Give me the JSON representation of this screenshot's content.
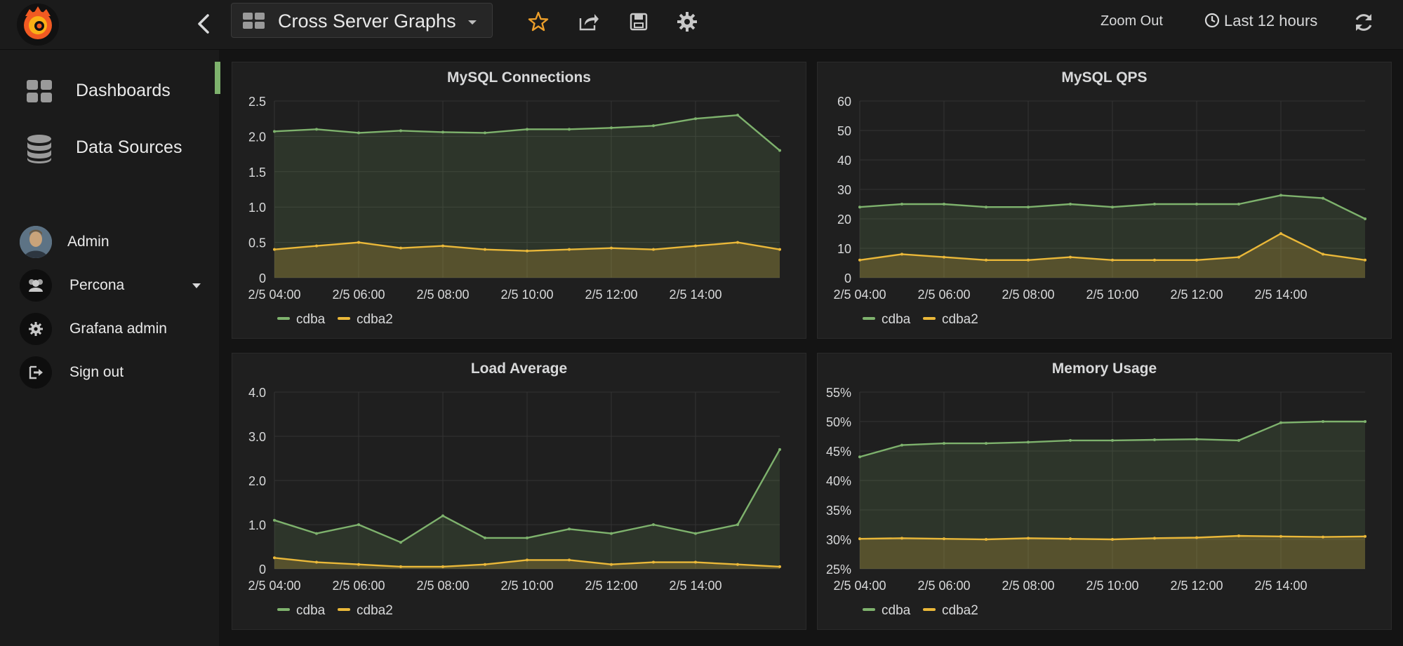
{
  "topbar": {
    "dashboard_title": "Cross Server Graphs",
    "zoom_out": "Zoom Out",
    "time_range": "Last 12 hours"
  },
  "sidebar": {
    "items": [
      {
        "label": "Dashboards",
        "icon": "dashboards-grid-icon"
      },
      {
        "label": "Data Sources",
        "icon": "database-icon"
      }
    ],
    "user": {
      "name": "Admin"
    },
    "org": {
      "name": "Percona"
    },
    "links": [
      {
        "label": "Grafana admin",
        "icon": "gear-icon"
      },
      {
        "label": "Sign out",
        "icon": "sign-out-icon"
      }
    ],
    "accent_color": "#7eb26d"
  },
  "colors": {
    "series_cdba": "#7eb26d",
    "series_cdba2": "#eab839",
    "background": "#141414",
    "panel": "#1f1f1f"
  },
  "chart_data": [
    {
      "type": "area",
      "title": "MySQL Connections",
      "ylim": [
        0,
        2.5
      ],
      "yticks": [
        "0",
        "0.5",
        "1.0",
        "1.5",
        "2.0",
        "2.5"
      ],
      "x": [
        "2/5 04:00",
        "2/5 05:00",
        "2/5 06:00",
        "2/5 07:00",
        "2/5 08:00",
        "2/5 09:00",
        "2/5 10:00",
        "2/5 11:00",
        "2/5 12:00",
        "2/5 13:00",
        "2/5 14:00",
        "2/5 15:00",
        "2/5 16:00"
      ],
      "xticks": [
        "2/5 04:00",
        "2/5 06:00",
        "2/5 08:00",
        "2/5 10:00",
        "2/5 12:00",
        "2/5 14:00"
      ],
      "grid": true,
      "legend": "bottom-left",
      "series": [
        {
          "name": "cdba",
          "values": [
            2.07,
            2.1,
            2.05,
            2.08,
            2.06,
            2.05,
            2.1,
            2.1,
            2.12,
            2.15,
            2.25,
            2.3,
            1.8
          ]
        },
        {
          "name": "cdba2",
          "values": [
            0.4,
            0.45,
            0.5,
            0.42,
            0.45,
            0.4,
            0.38,
            0.4,
            0.42,
            0.4,
            0.45,
            0.5,
            0.4
          ]
        }
      ]
    },
    {
      "type": "area",
      "title": "MySQL QPS",
      "ylim": [
        0,
        60
      ],
      "yticks": [
        "0",
        "10",
        "20",
        "30",
        "40",
        "50",
        "60"
      ],
      "x": [
        "2/5 04:00",
        "2/5 05:00",
        "2/5 06:00",
        "2/5 07:00",
        "2/5 08:00",
        "2/5 09:00",
        "2/5 10:00",
        "2/5 11:00",
        "2/5 12:00",
        "2/5 13:00",
        "2/5 14:00",
        "2/5 15:00",
        "2/5 16:00"
      ],
      "xticks": [
        "2/5 04:00",
        "2/5 06:00",
        "2/5 08:00",
        "2/5 10:00",
        "2/5 12:00",
        "2/5 14:00"
      ],
      "grid": true,
      "legend": "bottom-left",
      "series": [
        {
          "name": "cdba",
          "values": [
            24,
            25,
            25,
            24,
            24,
            25,
            24,
            25,
            25,
            25,
            28,
            27,
            20
          ]
        },
        {
          "name": "cdba2",
          "values": [
            6,
            8,
            7,
            6,
            6,
            7,
            6,
            6,
            6,
            7,
            15,
            8,
            6
          ]
        }
      ]
    },
    {
      "type": "area",
      "title": "Load Average",
      "ylim": [
        0,
        4.0
      ],
      "yticks": [
        "0",
        "1.0",
        "2.0",
        "3.0",
        "4.0"
      ],
      "x": [
        "2/5 04:00",
        "2/5 05:00",
        "2/5 06:00",
        "2/5 07:00",
        "2/5 08:00",
        "2/5 09:00",
        "2/5 10:00",
        "2/5 11:00",
        "2/5 12:00",
        "2/5 13:00",
        "2/5 14:00",
        "2/5 15:00",
        "2/5 16:00"
      ],
      "xticks": [
        "2/5 04:00",
        "2/5 06:00",
        "2/5 08:00",
        "2/5 10:00",
        "2/5 12:00",
        "2/5 14:00"
      ],
      "grid": true,
      "legend": "bottom-left",
      "series": [
        {
          "name": "cdba",
          "values": [
            1.1,
            0.8,
            1.0,
            0.6,
            1.2,
            0.7,
            0.7,
            0.9,
            0.8,
            1.0,
            0.8,
            1.0,
            2.7
          ]
        },
        {
          "name": "cdba2",
          "values": [
            0.25,
            0.15,
            0.1,
            0.05,
            0.05,
            0.1,
            0.2,
            0.2,
            0.1,
            0.15,
            0.15,
            0.1,
            0.05
          ]
        }
      ]
    },
    {
      "type": "area",
      "title": "Memory Usage",
      "ylim": [
        25,
        55
      ],
      "yticks": [
        "25%",
        "30%",
        "35%",
        "40%",
        "45%",
        "50%",
        "55%"
      ],
      "x": [
        "2/5 04:00",
        "2/5 05:00",
        "2/5 06:00",
        "2/5 07:00",
        "2/5 08:00",
        "2/5 09:00",
        "2/5 10:00",
        "2/5 11:00",
        "2/5 12:00",
        "2/5 13:00",
        "2/5 14:00",
        "2/5 15:00",
        "2/5 16:00"
      ],
      "xticks": [
        "2/5 04:00",
        "2/5 06:00",
        "2/5 08:00",
        "2/5 10:00",
        "2/5 12:00",
        "2/5 14:00"
      ],
      "grid": true,
      "legend": "bottom-left",
      "series": [
        {
          "name": "cdba",
          "values": [
            44,
            46,
            46.3,
            46.3,
            46.5,
            46.8,
            46.8,
            46.9,
            47,
            46.8,
            49.8,
            50,
            50
          ]
        },
        {
          "name": "cdba2",
          "values": [
            30.1,
            30.2,
            30.1,
            30,
            30.2,
            30.1,
            30,
            30.2,
            30.3,
            30.6,
            30.5,
            30.4,
            30.5
          ]
        }
      ]
    }
  ]
}
